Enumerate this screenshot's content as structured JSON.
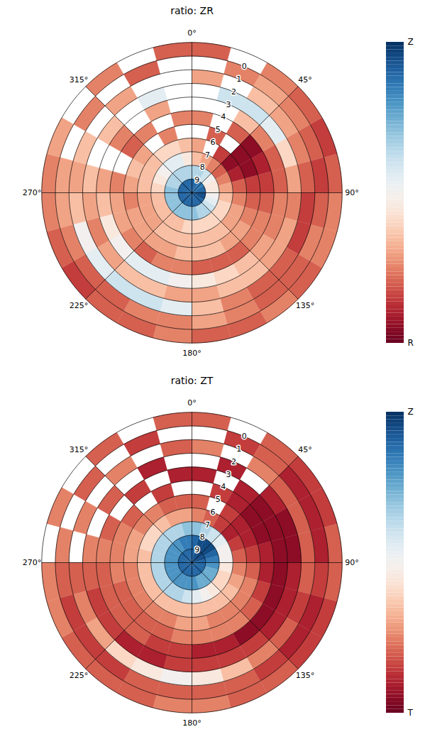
{
  "chart_data": [
    {
      "type": "polar_heatmap",
      "title": "ratio: ZR",
      "color": "RdBu",
      "radial_axis": {
        "lim": [
          10,
          -1
        ],
        "ticks": [
          0,
          1,
          2,
          3,
          4,
          5,
          6,
          7,
          8,
          9
        ]
      },
      "angular_axis": {
        "lim": [
          0,
          360
        ],
        "ticks": [
          {
            "value": 0,
            "label": "0°"
          },
          {
            "value": 45,
            "label": "45°"
          },
          {
            "value": 90,
            "label": "90°"
          },
          {
            "value": 135,
            "label": "135°"
          },
          {
            "value": 180,
            "label": "180°"
          },
          {
            "value": 225,
            "label": "225°"
          },
          {
            "value": 270,
            "label": "270°"
          },
          {
            "value": 315,
            "label": "315°"
          }
        ]
      },
      "colorbar": {
        "lim": [
          -1,
          1
        ],
        "ticks": [
          {
            "value": 1,
            "label": "Z"
          },
          {
            "value": -1,
            "label": "R"
          }
        ]
      },
      "grid": true,
      "cells": {
        "azimuth_edges": [
          0,
          15,
          30,
          45,
          60,
          75,
          90,
          105,
          120,
          135,
          150,
          165,
          180,
          195,
          210,
          225,
          240,
          255,
          270,
          285,
          300,
          315,
          330,
          345,
          360
        ],
        "radius_edges": [
          -1,
          0,
          1,
          2,
          3,
          4,
          5,
          6,
          7,
          8,
          9,
          10
        ],
        "values": [
          [
            -0.6,
            null,
            -0.5,
            -0.6,
            -0.7,
            -0.6,
            -0.5,
            -0.5,
            -0.6,
            -0.5,
            -0.6,
            -0.6,
            -0.5,
            -0.6,
            -0.6,
            -0.7,
            -0.6,
            -0.5,
            -0.5,
            -0.4,
            null,
            -0.5,
            null,
            -0.6
          ],
          [
            null,
            -0.5,
            -0.4,
            -0.5,
            -0.6,
            -0.7,
            -0.6,
            -0.5,
            -0.6,
            -0.6,
            -0.5,
            -0.4,
            -0.5,
            -0.5,
            -0.6,
            -0.6,
            -0.5,
            -0.4,
            -0.4,
            null,
            -0.5,
            null,
            -0.6,
            null
          ],
          [
            -0.4,
            null,
            -0.3,
            -0.4,
            -0.5,
            -0.6,
            -0.7,
            -0.7,
            -0.6,
            -0.6,
            -0.5,
            -0.3,
            0.1,
            0.2,
            0.2,
            0.1,
            0.0,
            -0.3,
            -0.4,
            -0.3,
            null,
            -0.4,
            null,
            null
          ],
          [
            null,
            0.2,
            0.2,
            0.1,
            -0.2,
            -0.4,
            -0.5,
            -0.4,
            -0.4,
            -0.3,
            -0.3,
            -0.4,
            -0.4,
            -0.3,
            -0.3,
            -0.4,
            -0.5,
            -0.4,
            -0.3,
            null,
            -0.3,
            null,
            0.1,
            null
          ],
          [
            null,
            null,
            -0.3,
            -0.5,
            -0.6,
            -0.6,
            -0.5,
            -0.5,
            -0.4,
            -0.3,
            -0.2,
            -0.1,
            0.0,
            0.1,
            0.1,
            0.0,
            -0.1,
            -0.3,
            -0.4,
            null,
            -0.5,
            null,
            -0.4,
            null
          ],
          [
            -0.5,
            null,
            -0.6,
            -0.9,
            -0.8,
            -0.7,
            -0.6,
            -0.5,
            -0.5,
            -0.6,
            -0.6,
            -0.6,
            -0.5,
            -0.5,
            -0.6,
            -0.5,
            -0.4,
            -0.4,
            -0.5,
            null,
            -0.6,
            -0.5,
            null,
            -0.5
          ],
          [
            null,
            -0.6,
            null,
            -0.9,
            -0.9,
            -0.7,
            -0.6,
            -0.5,
            -0.4,
            -0.4,
            -0.3,
            -0.3,
            -0.3,
            -0.4,
            -0.4,
            -0.4,
            -0.4,
            -0.5,
            -0.4,
            -0.3,
            -0.4,
            null,
            -0.5,
            null
          ],
          [
            -0.4,
            null,
            -0.7,
            -0.9,
            -0.8,
            -0.6,
            -0.5,
            -0.4,
            -0.4,
            -0.3,
            -0.3,
            -0.3,
            -0.3,
            -0.3,
            -0.3,
            -0.4,
            -0.4,
            -0.4,
            -0.3,
            -0.3,
            -0.3,
            -0.2,
            -0.2,
            -0.3
          ],
          [
            -0.3,
            -0.4,
            -0.5,
            -0.6,
            -0.5,
            -0.4,
            -0.3,
            -0.2,
            -0.2,
            -0.2,
            -0.2,
            -0.2,
            -0.2,
            -0.3,
            -0.3,
            -0.3,
            -0.3,
            -0.3,
            -0.2,
            -0.1,
            0.0,
            0.1,
            0.1,
            -0.1
          ],
          [
            0.3,
            0.3,
            0.2,
            0.0,
            -0.1,
            -0.1,
            0.0,
            0.1,
            0.2,
            0.3,
            0.3,
            0.4,
            0.4,
            0.4,
            0.4,
            0.4,
            0.4,
            0.4,
            0.4,
            0.3,
            0.3,
            0.3,
            0.3,
            0.3
          ],
          [
            0.8,
            0.8,
            0.7,
            0.7,
            0.8,
            0.8,
            0.9,
            0.9,
            0.8,
            0.8,
            0.8,
            0.8,
            0.8,
            0.8,
            0.8,
            0.8,
            0.8,
            0.8,
            0.8,
            0.8,
            0.8,
            0.8,
            0.8,
            0.8
          ]
        ]
      }
    },
    {
      "type": "polar_heatmap",
      "title": "ratio: ZT",
      "color": "RdBu",
      "radial_axis": {
        "lim": [
          10,
          -1
        ],
        "ticks": [
          0,
          1,
          2,
          3,
          4,
          5,
          6,
          7,
          8,
          9
        ]
      },
      "angular_axis": {
        "lim": [
          0,
          360
        ],
        "ticks": [
          {
            "value": 0,
            "label": "0°"
          },
          {
            "value": 45,
            "label": "45°"
          },
          {
            "value": 90,
            "label": "90°"
          },
          {
            "value": 135,
            "label": "135°"
          },
          {
            "value": 180,
            "label": "180°"
          },
          {
            "value": 225,
            "label": "225°"
          },
          {
            "value": 270,
            "label": "270°"
          },
          {
            "value": 315,
            "label": "315°"
          }
        ]
      },
      "colorbar": {
        "lim": [
          -1,
          1
        ],
        "ticks": [
          {
            "value": 1,
            "label": "Z"
          },
          {
            "value": -1,
            "label": "T"
          }
        ]
      },
      "grid": true,
      "cells": {
        "azimuth_edges": [
          0,
          15,
          30,
          45,
          60,
          75,
          90,
          105,
          120,
          135,
          150,
          165,
          180,
          195,
          210,
          225,
          240,
          255,
          270,
          285,
          300,
          315,
          330,
          345,
          360
        ],
        "radius_edges": [
          -1,
          0,
          1,
          2,
          3,
          4,
          5,
          6,
          7,
          8,
          9,
          10
        ],
        "values": [
          [
            -0.6,
            null,
            -0.6,
            -0.7,
            -0.7,
            -0.6,
            -0.6,
            -0.7,
            -0.7,
            -0.6,
            -0.6,
            -0.5,
            -0.5,
            -0.6,
            -0.6,
            -0.6,
            -0.5,
            -0.5,
            null,
            -0.5,
            null,
            -0.6,
            null,
            -0.6
          ],
          [
            null,
            -0.7,
            -0.6,
            -0.8,
            -0.8,
            -0.8,
            -0.7,
            -0.8,
            -0.8,
            -0.7,
            -0.6,
            -0.6,
            -0.6,
            -0.6,
            -0.7,
            -0.7,
            -0.7,
            -0.6,
            -0.5,
            null,
            -0.6,
            null,
            -0.7,
            null
          ],
          [
            -0.5,
            null,
            -0.5,
            -0.6,
            -0.6,
            -0.6,
            -0.6,
            -0.7,
            -0.6,
            -0.5,
            -0.3,
            -0.1,
            0.0,
            -0.1,
            -0.2,
            -0.4,
            -0.5,
            -0.6,
            null,
            -0.5,
            null,
            -0.5,
            null,
            -0.6
          ],
          [
            null,
            -0.8,
            null,
            -0.8,
            -0.9,
            -0.9,
            -0.8,
            -0.8,
            -0.8,
            -0.7,
            -0.7,
            -0.7,
            -0.7,
            -0.8,
            -0.8,
            -0.7,
            -0.7,
            -0.6,
            -0.5,
            null,
            -0.6,
            null,
            -0.8,
            null
          ],
          [
            -0.8,
            null,
            -0.8,
            -0.9,
            -0.9,
            -0.9,
            -0.9,
            -0.9,
            -0.9,
            -0.9,
            -0.8,
            -0.8,
            -0.7,
            -0.7,
            -0.6,
            -0.6,
            -0.6,
            -0.6,
            -0.5,
            -0.6,
            null,
            -0.7,
            null,
            -0.8
          ],
          [
            null,
            -0.7,
            -0.8,
            -0.9,
            -0.9,
            -0.8,
            -0.8,
            -0.7,
            -0.6,
            -0.5,
            -0.5,
            -0.5,
            -0.5,
            -0.6,
            -0.6,
            -0.6,
            -0.6,
            -0.5,
            -0.5,
            -0.5,
            -0.6,
            null,
            -0.7,
            null
          ],
          [
            -0.6,
            null,
            -0.7,
            -0.8,
            -0.8,
            -0.7,
            -0.6,
            -0.5,
            -0.5,
            -0.5,
            -0.5,
            -0.4,
            -0.4,
            -0.5,
            -0.5,
            -0.5,
            -0.5,
            -0.5,
            -0.4,
            -0.4,
            -0.5,
            -0.5,
            -0.6,
            -0.6
          ],
          [
            -0.5,
            -0.6,
            -0.7,
            -0.8,
            -0.7,
            -0.6,
            -0.5,
            -0.4,
            -0.3,
            -0.3,
            -0.3,
            -0.3,
            -0.3,
            -0.3,
            -0.3,
            -0.3,
            -0.3,
            -0.3,
            -0.3,
            -0.2,
            -0.2,
            -0.3,
            -0.4,
            -0.4
          ],
          [
            0.4,
            0.3,
            0.2,
            0.1,
            0.0,
            0.0,
            -0.1,
            -0.2,
            -0.2,
            -0.1,
            0.0,
            0.1,
            0.2,
            0.3,
            0.3,
            0.3,
            0.3,
            0.3,
            0.3,
            0.3,
            0.3,
            0.3,
            0.3,
            0.4
          ],
          [
            0.8,
            0.9,
            0.9,
            0.9,
            0.8,
            0.7,
            0.6,
            0.5,
            0.5,
            0.5,
            0.5,
            0.6,
            0.6,
            0.6,
            0.6,
            0.6,
            0.6,
            0.6,
            0.6,
            0.6,
            0.6,
            0.6,
            0.7,
            0.7
          ],
          [
            0.8,
            0.9,
            0.9,
            0.9,
            0.9,
            0.8,
            0.8,
            0.8,
            0.8,
            0.8,
            0.8,
            0.8,
            0.8,
            0.8,
            0.8,
            0.8,
            0.8,
            0.8,
            0.8,
            0.8,
            0.8,
            0.8,
            0.8,
            0.8
          ]
        ]
      }
    }
  ]
}
